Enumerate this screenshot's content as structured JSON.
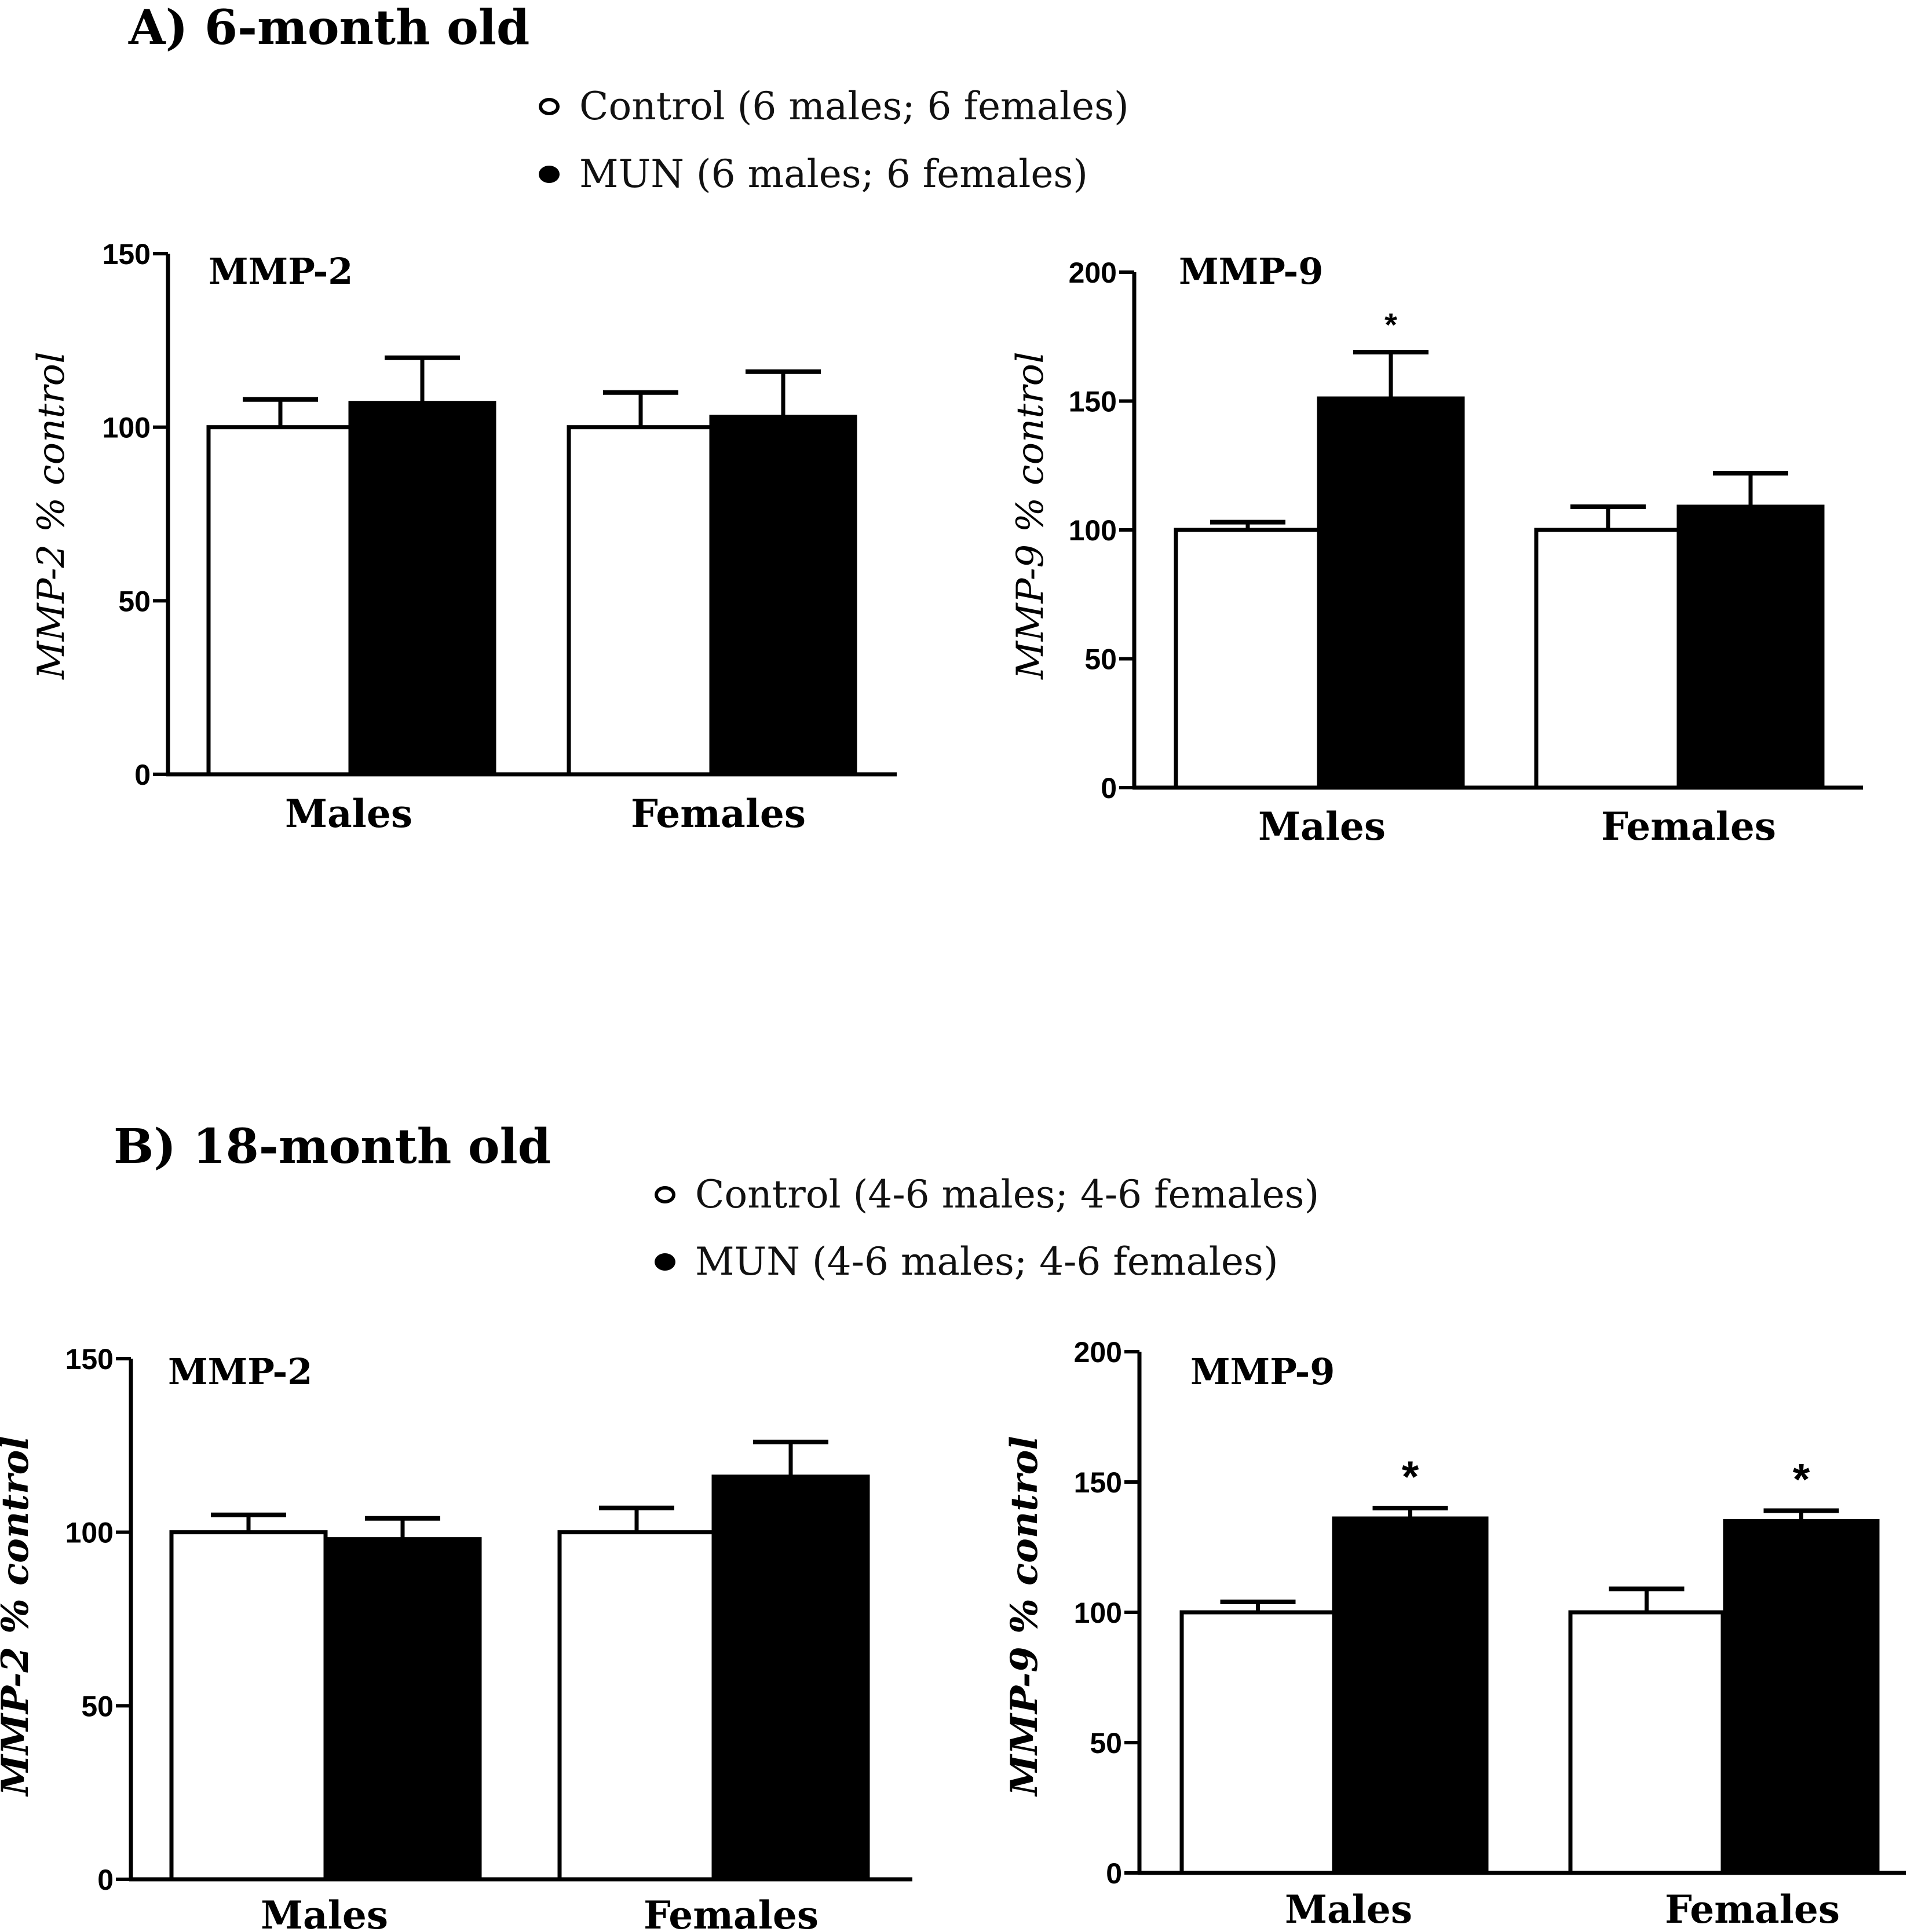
{
  "panels": [
    {
      "title": "A) 6-month old",
      "legend": [
        {
          "marker": "open-circle",
          "label": "Control (6 males; 6 females)"
        },
        {
          "marker": "filled-circle",
          "label": "MUN (6 males; 6 females)"
        }
      ]
    },
    {
      "title": "B) 18-month old",
      "legend": [
        {
          "marker": "open-circle",
          "label": "Control (4-6 males; 4-6 females)"
        },
        {
          "marker": "filled-circle",
          "label": "MUN (4-6 males; 4-6 females)"
        }
      ]
    }
  ],
  "colors": {
    "control_fill": "#ffffff",
    "mun_fill": "#000000",
    "stroke": "#000000"
  },
  "chart_data": [
    {
      "id": "a-mmp2",
      "panel": "A) 6-month old",
      "type": "bar",
      "title": "MMP-2",
      "ylabel": "MMP-2 % control",
      "ylim": [
        0,
        150
      ],
      "yticks": [
        0,
        50,
        100,
        150
      ],
      "categories": [
        "Males",
        "Females"
      ],
      "series": [
        {
          "name": "Control",
          "values": [
            100,
            100
          ],
          "errors": [
            8,
            10
          ]
        },
        {
          "name": "MUN",
          "values": [
            107,
            103
          ],
          "errors": [
            13,
            13
          ]
        }
      ],
      "annotations": []
    },
    {
      "id": "a-mmp9",
      "panel": "A) 6-month old",
      "type": "bar",
      "title": "MMP-9",
      "ylabel": "MMP-9 % control",
      "ylim": [
        0,
        200
      ],
      "yticks": [
        0,
        50,
        100,
        150,
        200
      ],
      "categories": [
        "Males",
        "Females"
      ],
      "series": [
        {
          "name": "Control",
          "values": [
            100,
            100
          ],
          "errors": [
            3,
            9
          ]
        },
        {
          "name": "MUN",
          "values": [
            151,
            109
          ],
          "errors": [
            18,
            13
          ]
        }
      ],
      "annotations": [
        {
          "category": "Males",
          "series": "MUN",
          "text": "*"
        }
      ]
    },
    {
      "id": "b-mmp2",
      "panel": "B) 18-month old",
      "type": "bar",
      "title": "MMP-2",
      "ylabel": "MMP-2 % control",
      "ylim": [
        0,
        150
      ],
      "yticks": [
        0,
        50,
        100,
        150
      ],
      "categories": [
        "Males",
        "Females"
      ],
      "series": [
        {
          "name": "Control",
          "values": [
            100,
            100
          ],
          "errors": [
            5,
            7
          ]
        },
        {
          "name": "MUN",
          "values": [
            98,
            116
          ],
          "errors": [
            6,
            10
          ]
        }
      ],
      "annotations": []
    },
    {
      "id": "b-mmp9",
      "panel": "B) 18-month old",
      "type": "bar",
      "title": "MMP-9",
      "ylabel": "MMP-9 % control",
      "ylim": [
        0,
        200
      ],
      "yticks": [
        0,
        50,
        100,
        150,
        200
      ],
      "categories": [
        "Males",
        "Females"
      ],
      "series": [
        {
          "name": "Control",
          "values": [
            100,
            100
          ],
          "errors": [
            4,
            9
          ]
        },
        {
          "name": "MUN",
          "values": [
            136,
            135
          ],
          "errors": [
            4,
            4
          ]
        }
      ],
      "annotations": [
        {
          "category": "Males",
          "series": "MUN",
          "text": "*"
        },
        {
          "category": "Females",
          "series": "MUN",
          "text": "*"
        }
      ]
    }
  ]
}
